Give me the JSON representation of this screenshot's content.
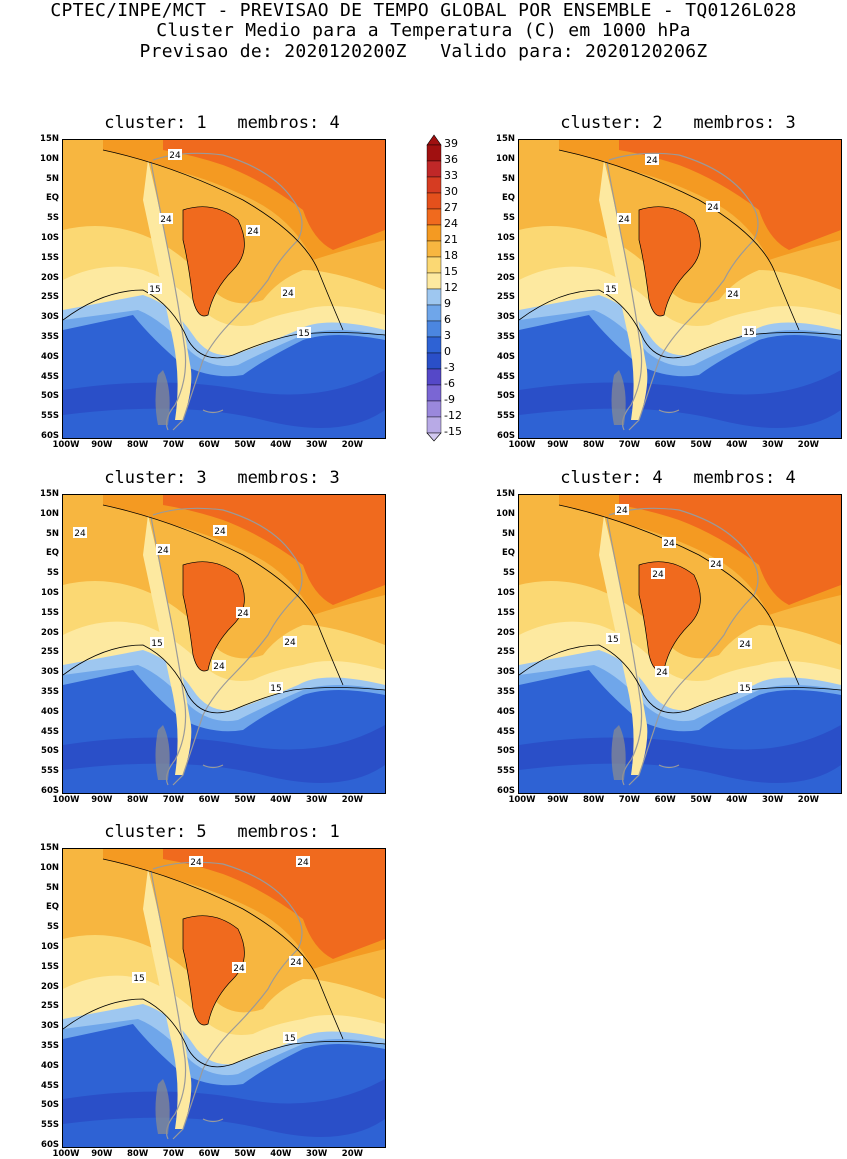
{
  "header": {
    "line1": "CPTEC/INPE/MCT - PREVISAO DE TEMPO GLOBAL POR ENSEMBLE - TQ0126L028",
    "line2": "Cluster Medio para a Temperatura (C) em 1000 hPa",
    "line3": "Previsao de: 2020120200Z   Valido para: 2020120206Z"
  },
  "axes": {
    "lat_labels": [
      "15N",
      "10N",
      "5N",
      "EQ",
      "5S",
      "10S",
      "15S",
      "20S",
      "25S",
      "30S",
      "35S",
      "40S",
      "45S",
      "50S",
      "55S",
      "60S"
    ],
    "lon_labels": [
      "100W",
      "90W",
      "80W",
      "70W",
      "60W",
      "50W",
      "40W",
      "30W",
      "20W"
    ]
  },
  "colorbar": {
    "labels": [
      "39",
      "36",
      "33",
      "30",
      "27",
      "24",
      "21",
      "18",
      "15",
      "12",
      "9",
      "6",
      "3",
      "0",
      "-3",
      "-6",
      "-9",
      "-12",
      "-15"
    ],
    "colors": [
      "#a01010",
      "#c02828",
      "#d63c22",
      "#e4501c",
      "#f06a1e",
      "#f49a22",
      "#f7b640",
      "#fbd873",
      "#fde9a0",
      "#9ec7f0",
      "#6fa6ea",
      "#4b86e0",
      "#2e62d4",
      "#2a4fc8",
      "#5548c8",
      "#7a66d4",
      "#9a88dc",
      "#b8aae6",
      "#d2c8f0"
    ]
  },
  "panels": [
    {
      "id": 1,
      "title": "cluster: 1   membros: 4",
      "contours": [
        "24",
        "24",
        "24",
        "24",
        "15",
        "15"
      ]
    },
    {
      "id": 2,
      "title": "cluster: 2   membros: 3",
      "contours": [
        "24",
        "24",
        "24",
        "24",
        "15",
        "15"
      ]
    },
    {
      "id": 3,
      "title": "cluster: 3   membros: 3",
      "contours": [
        "24",
        "24",
        "24",
        "24",
        "24",
        "24",
        "15",
        "15"
      ]
    },
    {
      "id": 4,
      "title": "cluster: 4   membros: 4",
      "contours": [
        "24",
        "24",
        "24",
        "24",
        "24",
        "24",
        "15",
        "15"
      ]
    },
    {
      "id": 5,
      "title": "cluster: 5   membros: 1",
      "contours": [
        "24",
        "24",
        "24",
        "24",
        "15",
        "15"
      ]
    }
  ]
}
